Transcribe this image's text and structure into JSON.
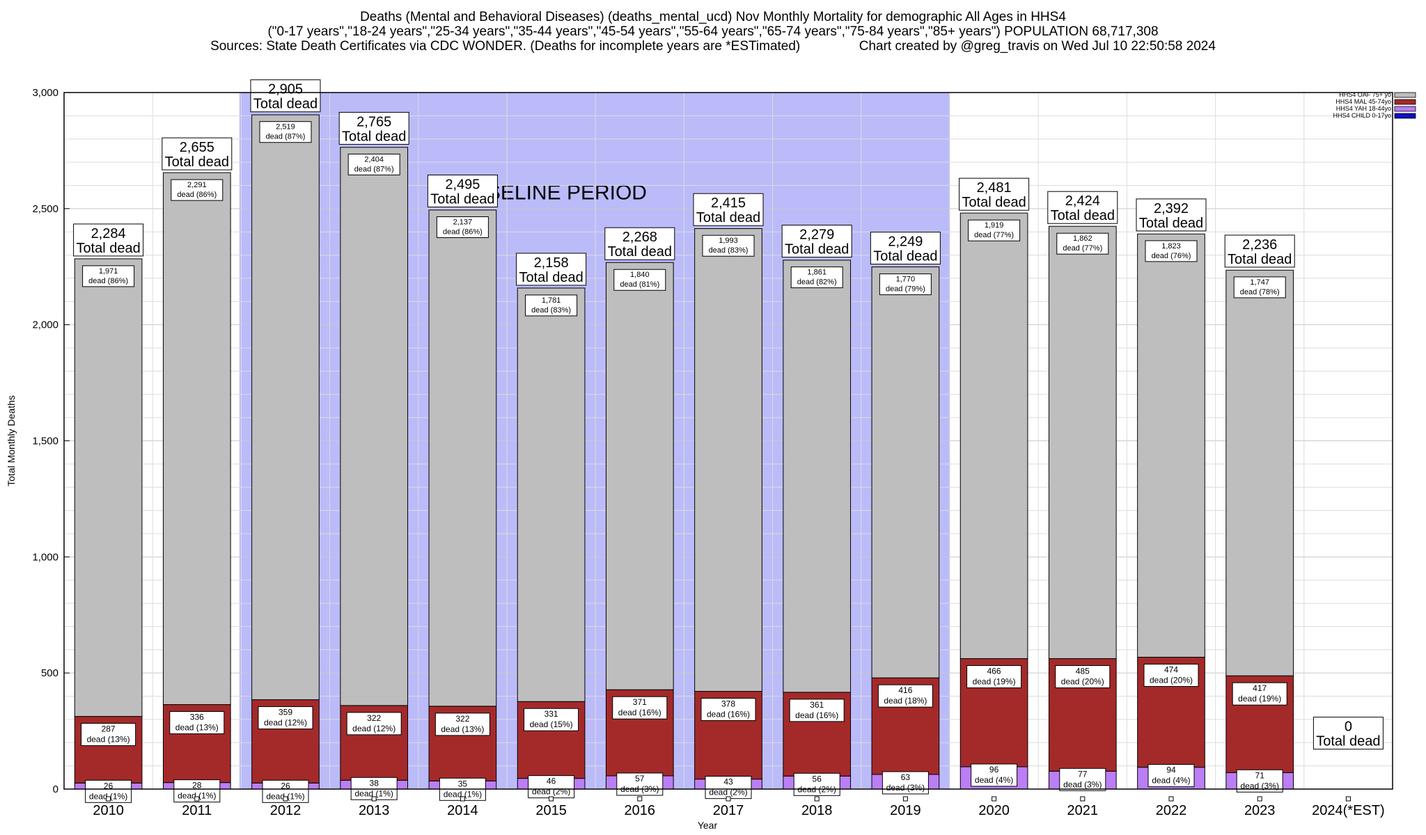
{
  "header": {
    "title_line1": "Deaths (Mental and Behavioral Diseases) (deaths_mental_ucd) Nov Monthly Mortality for demographic All Ages in HHS4",
    "title_line2": "(\"0-17 years\",\"18-24 years\",\"25-34 years\",\"35-44 years\",\"45-54 years\",\"55-64 years\",\"65-74 years\",\"75-84 years\",\"85+ years\") POPULATION 68,717,308",
    "title_line3": "Sources: State Death Certificates via CDC WONDER. (Deaths for incomplete years are *ESTimated)                Chart created by @greg_travis on Wed Jul 10 22:50:58 2024"
  },
  "chart_data": {
    "type": "bar",
    "stacked": true,
    "xlabel": "Year",
    "ylabel": "Total Monthly Deaths",
    "ylim": [
      0,
      3000
    ],
    "yticks": [
      0,
      500,
      1000,
      1500,
      2000,
      2500,
      3000
    ],
    "ytick_labels": [
      "0",
      "500",
      "1,000",
      "1,500",
      "2,000",
      "2,500",
      "3,000"
    ],
    "grid": true,
    "legend_position": "top-right",
    "categories": [
      "2010",
      "2011",
      "2012",
      "2013",
      "2014",
      "2015",
      "2016",
      "2017",
      "2018",
      "2019",
      "2020",
      "2021",
      "2022",
      "2023",
      "2024(*EST)"
    ],
    "series": [
      {
        "name": "HHS4 CHILD 0-17yo",
        "color": "#1010c0",
        "values": [
          0,
          0,
          0,
          0,
          0,
          0,
          0,
          0,
          0,
          0,
          0,
          0,
          0,
          0,
          0
        ]
      },
      {
        "name": "HHS4 YAH 18-44yo",
        "color": "#bb7ef5",
        "values": [
          26,
          28,
          26,
          38,
          35,
          46,
          57,
          43,
          56,
          63,
          96,
          77,
          94,
          71,
          0
        ],
        "labels": [
          "26\ndead (1%)",
          "28\ndead (1%)",
          "26\ndead (1%)",
          "38\ndead (1%)",
          "35\ndead (1%)",
          "46\ndead (2%)",
          "57\ndead (3%)",
          "43\ndead (2%)",
          "56\ndead (2%)",
          "63\ndead (3%)",
          "96\ndead (4%)",
          "77\ndead (3%)",
          "94\ndead (4%)",
          "71\ndead (3%)",
          ""
        ]
      },
      {
        "name": "HHS4 MAL 45-74yo",
        "color": "#a42a2a",
        "values": [
          287,
          336,
          359,
          322,
          322,
          331,
          371,
          378,
          361,
          416,
          466,
          485,
          474,
          417,
          0
        ],
        "labels": [
          "287\ndead (13%)",
          "336\ndead (13%)",
          "359\ndead (12%)",
          "322\ndead (12%)",
          "322\ndead (13%)",
          "331\ndead (15%)",
          "371\ndead (16%)",
          "378\ndead (16%)",
          "361\ndead (16%)",
          "416\ndead (18%)",
          "466\ndead (19%)",
          "485\ndead (20%)",
          "474\ndead (20%)",
          "417\ndead (19%)",
          ""
        ]
      },
      {
        "name": "HHS4 OAF 75+ yo",
        "color": "#bebebe",
        "values": [
          1971,
          2291,
          2519,
          2404,
          2137,
          1781,
          1840,
          1993,
          1861,
          1770,
          1919,
          1862,
          1823,
          1747,
          0
        ],
        "labels": [
          "1,971\ndead (86%)",
          "2,291\ndead (86%)",
          "2,519\ndead (87%)",
          "2,404\ndead (87%)",
          "2,137\ndead (86%)",
          "1,781\ndead (83%)",
          "1,840\ndead (81%)",
          "1,993\ndead (83%)",
          "1,861\ndead (82%)",
          "1,770\ndead (79%)",
          "1,919\ndead (77%)",
          "1,862\ndead (77%)",
          "1,823\ndead (76%)",
          "1,747\ndead (78%)",
          ""
        ]
      }
    ],
    "totals": [
      2284,
      2655,
      2905,
      2765,
      2495,
      2158,
      2268,
      2415,
      2279,
      2249,
      2481,
      2424,
      2392,
      2236,
      0
    ],
    "total_labels": [
      "2,284\nTotal dead",
      "2,655\nTotal dead",
      "2,905\nTotal dead",
      "2,765\nTotal dead",
      "2,495\nTotal dead",
      "2,158\nTotal dead",
      "2,268\nTotal dead",
      "2,415\nTotal dead",
      "2,279\nTotal dead",
      "2,249\nTotal dead",
      "2,481\nTotal dead",
      "2,424\nTotal dead",
      "2,392\nTotal dead",
      "2,236\nTotal dead",
      "0\nTotal dead"
    ],
    "annotation": {
      "text": "BASELINE PERIOD",
      "from_category": "2012",
      "to_category": "2019",
      "color": "#bbbbfa"
    }
  }
}
